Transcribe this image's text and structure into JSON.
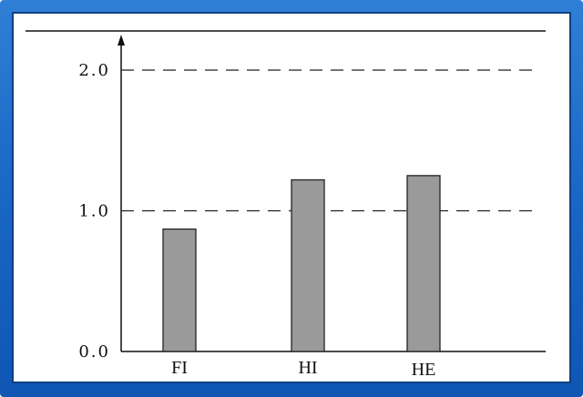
{
  "chart_data": {
    "type": "bar",
    "categories": [
      "FI",
      "HI",
      "HE"
    ],
    "values": [
      0.87,
      1.22,
      1.25
    ],
    "ylim": [
      0,
      2.0
    ],
    "yticks": [
      "0.0",
      "1.0",
      "2.0"
    ],
    "grid": "dashed at major ticks",
    "colors": {
      "bar": "#9a9a9a",
      "bar_edge": "#222222",
      "frame": "#1a66c4"
    }
  }
}
